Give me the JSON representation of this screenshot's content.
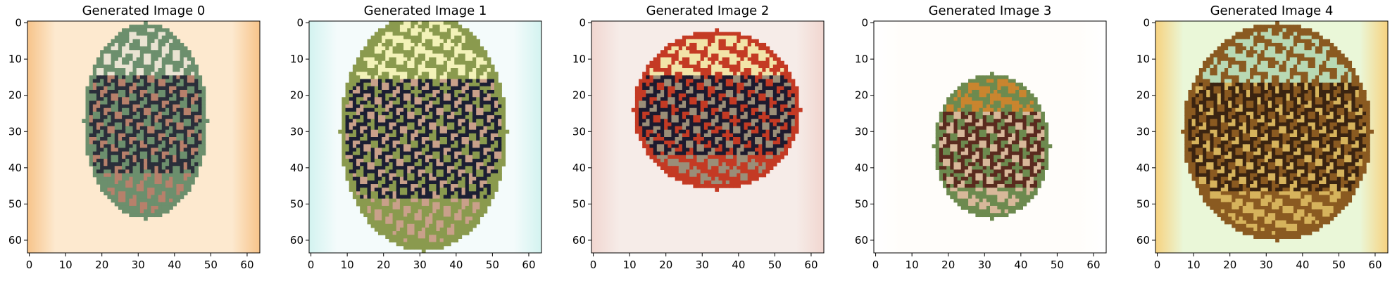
{
  "chart_data": [
    {
      "type": "image",
      "title": "Generated Image 0",
      "image_size": [
        64,
        64
      ],
      "xticks": [
        0,
        10,
        20,
        30,
        40,
        50,
        60
      ],
      "yticks": [
        0,
        10,
        20,
        30,
        40,
        50,
        60
      ],
      "xlim": [
        -0.5,
        63.5
      ],
      "ylim": [
        63.5,
        -0.5
      ],
      "background": "#fde9cf",
      "edge_color": "#f7c48a",
      "shape": "oval",
      "shape_center": [
        32,
        27
      ],
      "shape_radii": [
        17,
        27
      ],
      "shape_colors": [
        "#2b2f3a",
        "#6c8f6d",
        "#b7806b",
        "#e9e3d2"
      ]
    },
    {
      "type": "image",
      "title": "Generated Image 1",
      "image_size": [
        64,
        64
      ],
      "xticks": [
        0,
        10,
        20,
        30,
        40,
        50,
        60
      ],
      "yticks": [
        0,
        10,
        20,
        30,
        40,
        50,
        60
      ],
      "xlim": [
        -0.5,
        63.5
      ],
      "ylim": [
        63.5,
        -0.5
      ],
      "background": "#f4fbfb",
      "edge_color": "#d3f3f0",
      "shape": "oval",
      "shape_center": [
        31,
        30
      ],
      "shape_radii": [
        23,
        33
      ],
      "shape_colors": [
        "#1c1f33",
        "#8a9a4e",
        "#c9a08a",
        "#f3f2b8"
      ]
    },
    {
      "type": "image",
      "title": "Generated Image 2",
      "image_size": [
        64,
        64
      ],
      "xticks": [
        0,
        10,
        20,
        30,
        40,
        50,
        60
      ],
      "yticks": [
        0,
        10,
        20,
        30,
        40,
        50,
        60
      ],
      "xlim": [
        -0.5,
        63.5
      ],
      "ylim": [
        63.5,
        -0.5
      ],
      "background": "#f6ece8",
      "edge_color": "#f1d6d0",
      "shape": "oval",
      "shape_center": [
        34,
        24
      ],
      "shape_radii": [
        23,
        22
      ],
      "shape_colors": [
        "#1d1a2e",
        "#c43a24",
        "#9a8e78",
        "#f2e4a8"
      ]
    },
    {
      "type": "image",
      "title": "Generated Image 3",
      "image_size": [
        64,
        64
      ],
      "xticks": [
        0,
        10,
        20,
        30,
        40,
        50,
        60
      ],
      "yticks": [
        0,
        10,
        20,
        30,
        40,
        50,
        60
      ],
      "xlim": [
        -0.5,
        63.5
      ],
      "ylim": [
        63.5,
        -0.5
      ],
      "background": "#fffdfa",
      "edge_color": "#ffffff",
      "shape": "oval",
      "shape_center": [
        32,
        34
      ],
      "shape_radii": [
        16,
        20
      ],
      "shape_colors": [
        "#5a2b1f",
        "#6d8a4f",
        "#d8b89a",
        "#c9852f"
      ]
    },
    {
      "type": "image",
      "title": "Generated Image 4",
      "image_size": [
        64,
        64
      ],
      "xticks": [
        0,
        10,
        20,
        30,
        40,
        50,
        60
      ],
      "yticks": [
        0,
        10,
        20,
        30,
        40,
        50,
        60
      ],
      "xlim": [
        -0.5,
        63.5
      ],
      "ylim": [
        63.5,
        -0.5
      ],
      "background": "#eaf7d8",
      "edge_color": "#f7d27f",
      "shape": "oval",
      "shape_center": [
        33,
        30
      ],
      "shape_radii": [
        26,
        30
      ],
      "shape_colors": [
        "#3b2411",
        "#8a5a21",
        "#d6b35c",
        "#b8d9b4"
      ]
    }
  ]
}
